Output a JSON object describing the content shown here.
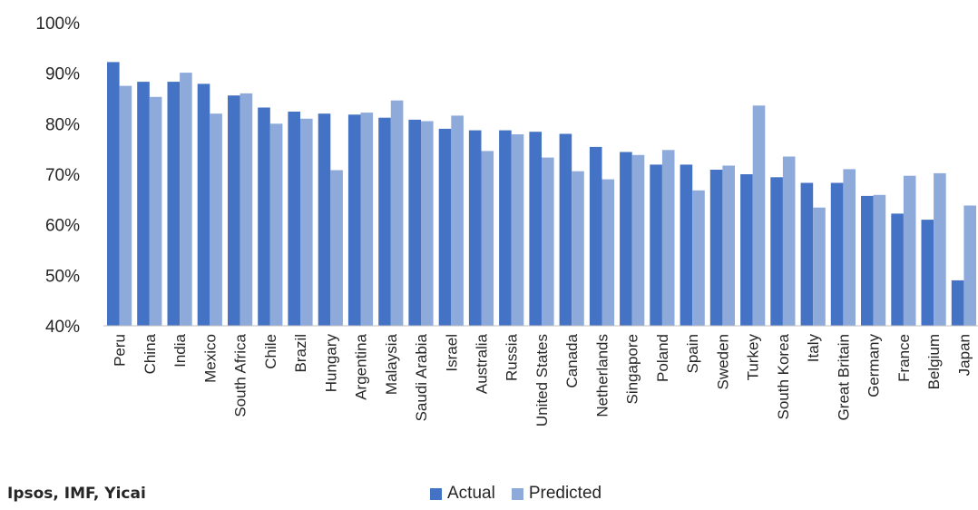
{
  "chart_data": {
    "type": "bar",
    "title": "",
    "xlabel": "",
    "ylabel": "",
    "ylim": [
      40,
      100
    ],
    "y_ticks": [
      "40%",
      "50%",
      "60%",
      "70%",
      "80%",
      "90%",
      "100%"
    ],
    "y_tick_values": [
      40,
      50,
      60,
      70,
      80,
      90,
      100
    ],
    "categories": [
      "Peru",
      "China",
      "India",
      "Mexico",
      "South Africa",
      "Chile",
      "Brazil",
      "Hungary",
      "Argentina",
      "Malaysia",
      "Saudi Arabia",
      "Israel",
      "Australia",
      "Russia",
      "United States",
      "Canada",
      "Netherlands",
      "Singapore",
      "Poland",
      "Spain",
      "Sweden",
      "Turkey",
      "South Korea",
      "Italy",
      "Great Britain",
      "Germany",
      "France",
      "Belgium",
      "Japan"
    ],
    "series": [
      {
        "name": "Actual",
        "color": "#4472c4",
        "values": [
          92.2,
          88.3,
          88.3,
          87.9,
          85.6,
          83.2,
          82.4,
          82.0,
          81.8,
          81.2,
          80.8,
          79.0,
          78.7,
          78.7,
          78.4,
          78.0,
          75.4,
          74.4,
          71.9,
          71.9,
          70.9,
          70.0,
          69.4,
          68.3,
          68.3,
          65.7,
          62.2,
          61.0,
          49.0
        ]
      },
      {
        "name": "Predicted",
        "color": "#8eaadb",
        "values": [
          87.5,
          85.3,
          90.1,
          82.0,
          86.0,
          80.0,
          81.0,
          70.8,
          82.2,
          84.6,
          80.5,
          81.6,
          74.6,
          77.9,
          73.3,
          70.6,
          69.0,
          73.8,
          74.8,
          66.8,
          71.7,
          83.6,
          73.5,
          63.4,
          71.0,
          65.9,
          69.7,
          70.2,
          63.8
        ]
      }
    ],
    "grid": false,
    "legend_position": "bottom"
  },
  "source_text": "Ipsos, IMF, Yicai",
  "legend": {
    "actual": "Actual",
    "predicted": "Predicted"
  }
}
